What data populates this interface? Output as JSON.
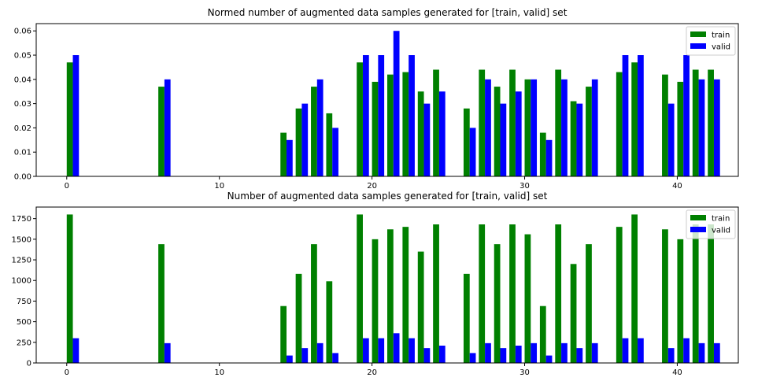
{
  "chart_data": [
    {
      "type": "bar",
      "title": "Normed number of augmented data samples generated for [train, valid] set",
      "xlabel": "",
      "ylabel": "",
      "xlim": [
        -2,
        44
      ],
      "ylim": [
        0,
        0.063
      ],
      "bar_width": 0.4,
      "xticks": [
        0,
        10,
        20,
        30,
        40
      ],
      "xtick_labels": [
        "0",
        "10",
        "20",
        "30",
        "40"
      ],
      "yticks": [
        0,
        0.01,
        0.02,
        0.03,
        0.04,
        0.05,
        0.06
      ],
      "ytick_labels": [
        "0.00",
        "0.01",
        "0.02",
        "0.03",
        "0.04",
        "0.05",
        "0.06"
      ],
      "grid": false,
      "legend": {
        "placement": "top-right"
      },
      "x": [
        0,
        6,
        14,
        15,
        16,
        17,
        19,
        20,
        21,
        22,
        23,
        24,
        26,
        27,
        28,
        29,
        30,
        31,
        32,
        33,
        34,
        36,
        37,
        39,
        40,
        41,
        42
      ],
      "series": [
        {
          "name": "train",
          "color": "#008000",
          "values": [
            0.047,
            0.037,
            0.018,
            0.028,
            0.037,
            0.026,
            0.047,
            0.039,
            0.042,
            0.043,
            0.035,
            0.044,
            0.028,
            0.044,
            0.037,
            0.044,
            0.04,
            0.018,
            0.044,
            0.031,
            0.037,
            0.043,
            0.047,
            0.042,
            0.039,
            0.044,
            0.044
          ]
        },
        {
          "name": "valid",
          "color": "#0000ff",
          "values": [
            0.05,
            0.04,
            0.015,
            0.03,
            0.04,
            0.02,
            0.05,
            0.05,
            0.06,
            0.05,
            0.03,
            0.035,
            0.02,
            0.04,
            0.03,
            0.035,
            0.04,
            0.015,
            0.04,
            0.03,
            0.04,
            0.05,
            0.05,
            0.03,
            0.05,
            0.04,
            0.04
          ]
        }
      ]
    },
    {
      "type": "bar",
      "title": "Number of augmented data samples generated for [train, valid] set",
      "xlabel": "",
      "ylabel": "",
      "xlim": [
        -2,
        44
      ],
      "ylim": [
        0,
        1890
      ],
      "bar_width": 0.4,
      "xticks": [
        0,
        10,
        20,
        30,
        40
      ],
      "xtick_labels": [
        "0",
        "10",
        "20",
        "30",
        "40"
      ],
      "yticks": [
        0,
        250,
        500,
        750,
        1000,
        1250,
        1500,
        1750
      ],
      "ytick_labels": [
        "0",
        "250",
        "500",
        "750",
        "1000",
        "1250",
        "1500",
        "1750"
      ],
      "grid": false,
      "legend": {
        "placement": "top-right"
      },
      "x": [
        0,
        6,
        14,
        15,
        16,
        17,
        19,
        20,
        21,
        22,
        23,
        24,
        26,
        27,
        28,
        29,
        30,
        31,
        32,
        33,
        34,
        36,
        37,
        39,
        40,
        41,
        42
      ],
      "series": [
        {
          "name": "train",
          "color": "#008000",
          "values": [
            1800,
            1440,
            690,
            1080,
            1440,
            990,
            1800,
            1500,
            1620,
            1650,
            1350,
            1680,
            1080,
            1680,
            1440,
            1680,
            1560,
            690,
            1680,
            1200,
            1440,
            1650,
            1800,
            1620,
            1500,
            1680,
            1680
          ]
        },
        {
          "name": "valid",
          "color": "#0000ff",
          "values": [
            300,
            240,
            90,
            180,
            240,
            120,
            300,
            300,
            360,
            300,
            180,
            210,
            120,
            240,
            180,
            210,
            240,
            90,
            240,
            180,
            240,
            300,
            300,
            180,
            300,
            240,
            240
          ]
        }
      ]
    }
  ]
}
